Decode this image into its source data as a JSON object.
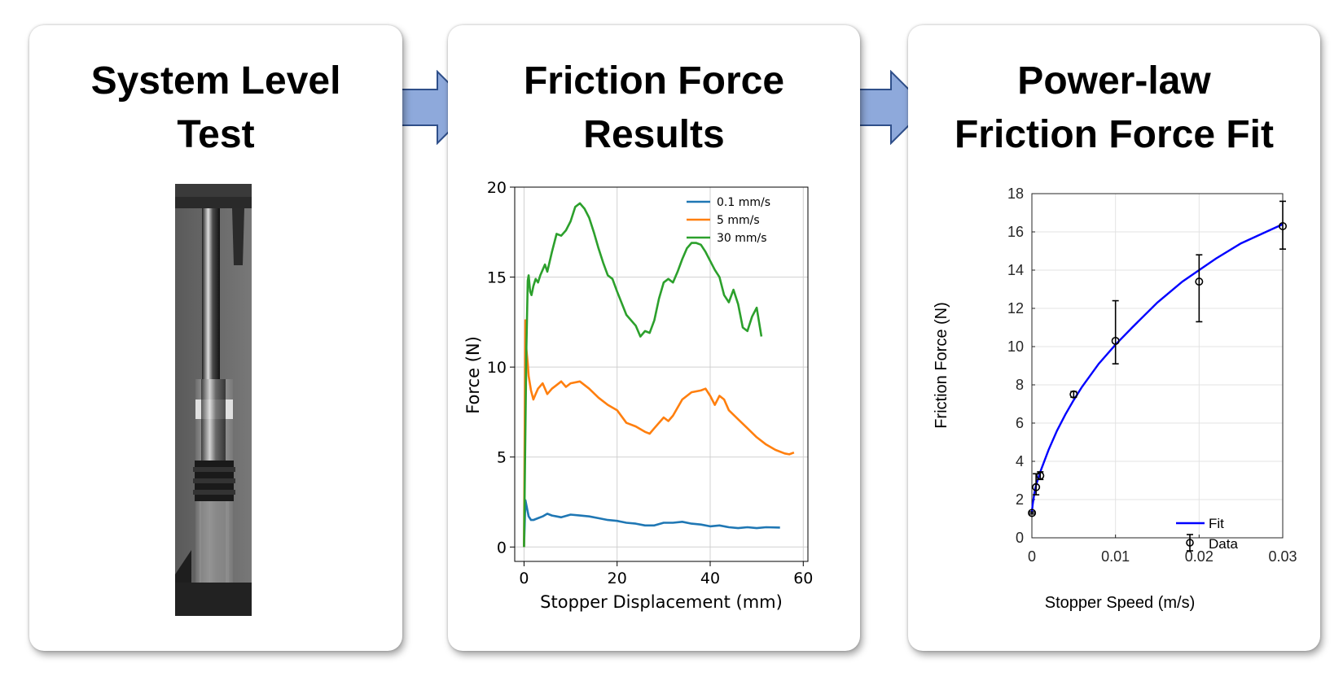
{
  "panels": [
    {
      "title_line1": "System Level",
      "title_line2": "Test"
    },
    {
      "title_line1": "Friction Force",
      "title_line2": "Results"
    },
    {
      "title_line1": "Power-law",
      "title_line2": "Friction Force Fit"
    }
  ],
  "colors": {
    "arrow": "#8EA9DB",
    "arrow_stroke": "#2F4F8A",
    "series_blue": "#1f77b4",
    "series_orange": "#ff7f0e",
    "series_green": "#2ca02c",
    "fit": "#0000ff"
  },
  "chart_data": [
    {
      "type": "line",
      "xlabel": "Stopper Displacement (mm)",
      "ylabel": "Force (N)",
      "xlim": [
        -2,
        61
      ],
      "ylim": [
        -0.8,
        20
      ],
      "xticks": [
        0,
        20,
        40,
        60
      ],
      "yticks": [
        0,
        5,
        10,
        15,
        20
      ],
      "grid": true,
      "legend_position": "top-right",
      "series": [
        {
          "name": "0.1 mm/s",
          "x": [
            0,
            0.3,
            0.6,
            1,
            1.5,
            2,
            3,
            4,
            5,
            6,
            7,
            8,
            10,
            12,
            14,
            16,
            18,
            20,
            22,
            24,
            26,
            28,
            30,
            32,
            34,
            36,
            38,
            40,
            42,
            44,
            46,
            48,
            50,
            52,
            55
          ],
          "y": [
            0,
            2.6,
            2.2,
            1.7,
            1.5,
            1.5,
            1.6,
            1.7,
            1.85,
            1.75,
            1.7,
            1.65,
            1.8,
            1.75,
            1.7,
            1.6,
            1.5,
            1.45,
            1.35,
            1.3,
            1.2,
            1.2,
            1.35,
            1.35,
            1.4,
            1.3,
            1.25,
            1.15,
            1.2,
            1.1,
            1.05,
            1.1,
            1.05,
            1.1,
            1.08
          ]
        },
        {
          "name": "5 mm/s",
          "x": [
            0,
            0.3,
            0.5,
            0.8,
            1,
            1.5,
            2,
            2.5,
            3,
            4,
            5,
            6,
            7,
            8,
            9,
            10,
            12,
            14,
            16,
            18,
            20,
            22,
            24,
            26,
            27,
            28,
            30,
            31,
            32,
            34,
            36,
            38,
            39,
            40,
            41,
            42,
            43,
            44,
            46,
            48,
            50,
            52,
            54,
            56,
            57,
            58
          ],
          "y": [
            0,
            12.6,
            11,
            10.2,
            9.5,
            8.7,
            8.2,
            8.5,
            8.8,
            9.1,
            8.5,
            8.8,
            9.0,
            9.2,
            8.9,
            9.1,
            9.2,
            8.8,
            8.3,
            7.9,
            7.6,
            6.9,
            6.7,
            6.4,
            6.3,
            6.6,
            7.2,
            7.0,
            7.3,
            8.2,
            8.6,
            8.7,
            8.8,
            8.4,
            7.9,
            8.4,
            8.2,
            7.6,
            7.1,
            6.6,
            6.1,
            5.7,
            5.4,
            5.2,
            5.15,
            5.25
          ]
        },
        {
          "name": "30 mm/s",
          "x": [
            0,
            0.5,
            0.8,
            1,
            1.3,
            1.6,
            2,
            2.5,
            3,
            3.5,
            4,
            4.5,
            5,
            6,
            7,
            8,
            9,
            10,
            11,
            12,
            13,
            14,
            15,
            16,
            17,
            18,
            19,
            20,
            22,
            24,
            25,
            26,
            27,
            28,
            29,
            30,
            31,
            32,
            33,
            34,
            35,
            36,
            37,
            38,
            39,
            40,
            41,
            42,
            43,
            44,
            45,
            46,
            47,
            48,
            49,
            50,
            51
          ],
          "y": [
            0,
            11,
            14.8,
            15.1,
            14.2,
            14.0,
            14.5,
            14.9,
            14.7,
            15.1,
            15.4,
            15.7,
            15.3,
            16.4,
            17.4,
            17.3,
            17.6,
            18.1,
            18.9,
            19.1,
            18.8,
            18.3,
            17.5,
            16.6,
            15.8,
            15.1,
            14.9,
            14.2,
            12.9,
            12.3,
            11.7,
            12.0,
            11.9,
            12.6,
            13.8,
            14.7,
            14.9,
            14.7,
            15.3,
            16.0,
            16.6,
            16.9,
            16.9,
            16.8,
            16.4,
            15.9,
            15.4,
            15.0,
            14.0,
            13.6,
            14.3,
            13.5,
            12.2,
            12.0,
            12.8,
            13.3,
            11.7
          ]
        }
      ]
    },
    {
      "type": "scatter",
      "xlabel": "Stopper Speed (m/s)",
      "ylabel": "Friction Force (N)",
      "xlim": [
        0,
        0.03
      ],
      "ylim": [
        0,
        18
      ],
      "xticks": [
        "0",
        "0.01",
        "0.02",
        "0.03"
      ],
      "yticks": [
        "0",
        "2",
        "4",
        "6",
        "8",
        "10",
        "12",
        "14",
        "16",
        "18"
      ],
      "grid": true,
      "legend_position": "bottom-right",
      "series": [
        {
          "name": "Fit",
          "kind": "line",
          "model": "power-law",
          "x": [
            0,
            5e-05,
            0.0001,
            0.0003,
            0.0005,
            0.001,
            0.002,
            0.003,
            0.004,
            0.005,
            0.006,
            0.008,
            0.01,
            0.012,
            0.015,
            0.018,
            0.02,
            0.022,
            0.025,
            0.028,
            0.03
          ],
          "y": [
            1.3,
            1.55,
            1.75,
            2.35,
            2.75,
            3.45,
            4.6,
            5.6,
            6.45,
            7.2,
            7.9,
            9.1,
            10.1,
            11.0,
            12.3,
            13.4,
            14.0,
            14.6,
            15.4,
            16.0,
            16.4
          ]
        },
        {
          "name": "Data",
          "kind": "errorbar",
          "x": [
            1e-05,
            0.0005,
            0.001,
            0.005,
            0.01,
            0.02,
            0.03
          ],
          "y": [
            1.3,
            2.65,
            3.25,
            7.5,
            10.3,
            13.4,
            16.3
          ],
          "err_low": [
            0.05,
            0.4,
            0.2,
            0.15,
            1.2,
            2.1,
            1.2
          ],
          "err_high": [
            0.05,
            0.7,
            0.2,
            0.15,
            2.1,
            1.4,
            1.3
          ]
        }
      ]
    }
  ]
}
